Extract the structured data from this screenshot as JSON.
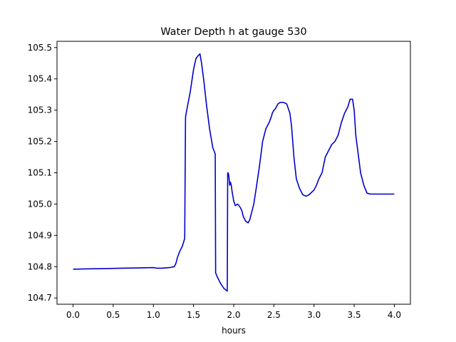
{
  "chart_data": {
    "type": "line",
    "title": "Water Depth h at gauge 530",
    "xlabel": "hours",
    "ylabel": "",
    "xlim": [
      -0.2,
      4.2
    ],
    "ylim": [
      104.68,
      105.52
    ],
    "xticks": [
      0.0,
      0.5,
      1.0,
      1.5,
      2.0,
      2.5,
      3.0,
      3.5,
      4.0
    ],
    "xtick_labels": [
      "0.0",
      "0.5",
      "1.0",
      "1.5",
      "2.0",
      "2.5",
      "3.0",
      "3.5",
      "4.0"
    ],
    "yticks": [
      104.7,
      104.8,
      104.9,
      105.0,
      105.1,
      105.2,
      105.3,
      105.4,
      105.5
    ],
    "ytick_labels": [
      "104.7",
      "104.8",
      "104.9",
      "105.0",
      "105.1",
      "105.2",
      "105.3",
      "105.4",
      "105.5"
    ],
    "grid": false,
    "legend": "none",
    "colors": {
      "line": "#0000cc"
    },
    "series": [
      {
        "x": [
          0.0,
          0.2,
          0.4,
          0.6,
          0.8,
          1.0,
          1.05,
          1.1,
          1.2,
          1.26,
          1.28,
          1.3,
          1.33,
          1.36,
          1.39,
          1.4,
          1.401,
          1.43,
          1.46,
          1.5,
          1.53,
          1.56,
          1.58,
          1.6,
          1.63,
          1.66,
          1.7,
          1.74,
          1.77,
          1.775,
          1.8,
          1.84,
          1.88,
          1.92,
          1.925,
          1.93,
          1.94,
          1.95,
          1.96,
          1.97,
          1.98,
          2.0,
          2.02,
          2.05,
          2.08,
          2.1,
          2.12,
          2.15,
          2.18,
          2.2,
          2.22,
          2.25,
          2.28,
          2.32,
          2.36,
          2.4,
          2.44,
          2.47,
          2.48,
          2.5,
          2.52,
          2.55,
          2.58,
          2.62,
          2.66,
          2.7,
          2.72,
          2.75,
          2.78,
          2.82,
          2.86,
          2.9,
          2.94,
          2.98,
          3.0,
          3.03,
          3.06,
          3.1,
          3.14,
          3.18,
          3.22,
          3.26,
          3.3,
          3.34,
          3.38,
          3.42,
          3.45,
          3.48,
          3.5,
          3.52,
          3.55,
          3.58,
          3.62,
          3.66,
          3.7,
          3.73,
          3.76,
          3.79,
          3.82,
          3.86,
          3.88,
          3.9,
          3.92,
          3.95,
          3.98,
          4.0
        ],
        "y": [
          104.792,
          104.793,
          104.794,
          104.795,
          104.796,
          104.797,
          104.795,
          104.795,
          104.797,
          104.8,
          104.81,
          104.83,
          104.85,
          104.865,
          104.89,
          105.27,
          105.28,
          105.32,
          105.36,
          105.43,
          105.465,
          105.475,
          105.48,
          105.45,
          105.39,
          105.32,
          105.24,
          105.18,
          105.16,
          104.78,
          104.765,
          104.745,
          104.73,
          104.722,
          105.1,
          105.1,
          105.09,
          105.06,
          105.07,
          105.06,
          105.04,
          105.01,
          104.995,
          105.0,
          104.99,
          104.98,
          104.96,
          104.945,
          104.94,
          104.95,
          104.97,
          105.0,
          105.05,
          105.12,
          105.2,
          105.24,
          105.26,
          105.28,
          105.29,
          105.3,
          105.305,
          105.32,
          105.325,
          105.325,
          105.32,
          105.29,
          105.25,
          105.15,
          105.08,
          105.05,
          105.03,
          105.025,
          105.03,
          105.04,
          105.045,
          105.06,
          105.08,
          105.1,
          105.15,
          105.17,
          105.19,
          105.2,
          105.22,
          105.26,
          105.29,
          105.31,
          105.335,
          105.335,
          105.3,
          105.22,
          105.16,
          105.1,
          105.06,
          105.035,
          105.032,
          105.032,
          105.032,
          105.032,
          105.032,
          105.032,
          105.032,
          105.032,
          105.032,
          105.032,
          105.032,
          105.032
        ]
      }
    ]
  }
}
